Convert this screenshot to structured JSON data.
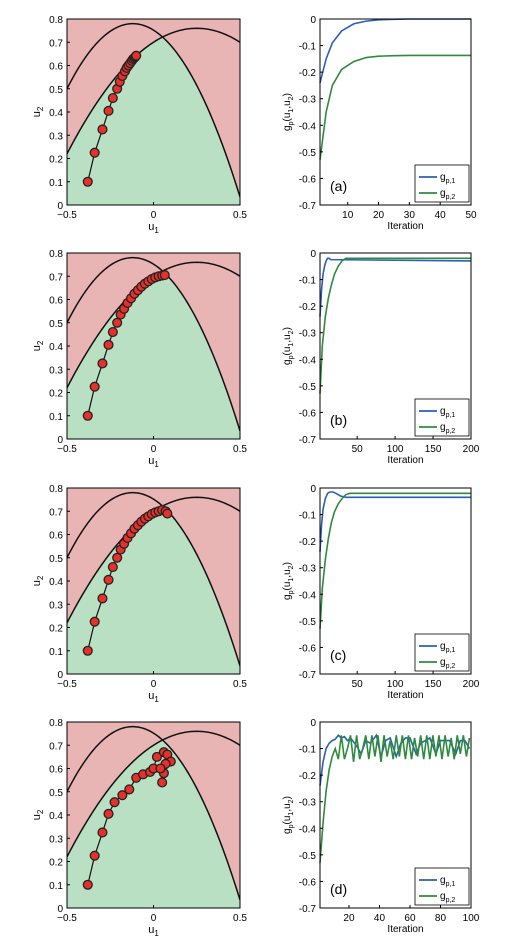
{
  "chart_data": [
    {
      "panel": "1-left",
      "type": "scatter",
      "xlabel": "u",
      "xlabel_sub": "1",
      "ylabel": "u",
      "ylabel_sub": "2",
      "xlim": [
        -0.5,
        0.5
      ],
      "ylim": [
        0,
        0.8
      ],
      "xticks": [
        "−0.5",
        "0",
        "0.5"
      ],
      "yticks": [
        "0",
        "0.1",
        "0.2",
        "0.3",
        "0.4",
        "0.5",
        "0.6",
        "0.7",
        "0.8"
      ],
      "region_colors": {
        "infeasible": "#e8b4b4",
        "feasible": "#b9e0c2"
      },
      "constraint_peaks": [
        [
          -0.12,
          0.78
        ],
        [
          0.25,
          0.76
        ]
      ],
      "points": [
        [
          -0.38,
          0.1
        ],
        [
          -0.34,
          0.225
        ],
        [
          -0.295,
          0.325
        ],
        [
          -0.26,
          0.405
        ],
        [
          -0.235,
          0.46
        ],
        [
          -0.21,
          0.5
        ],
        [
          -0.195,
          0.53
        ],
        [
          -0.18,
          0.555
        ],
        [
          -0.165,
          0.575
        ],
        [
          -0.155,
          0.59
        ],
        [
          -0.145,
          0.6
        ],
        [
          -0.135,
          0.61
        ],
        [
          -0.125,
          0.62
        ],
        [
          -0.118,
          0.628
        ],
        [
          -0.11,
          0.633
        ],
        [
          -0.105,
          0.638
        ],
        [
          -0.1,
          0.642
        ]
      ]
    },
    {
      "panel": "1-right",
      "type": "line",
      "tag": "(a)",
      "xlabel": "Iteration",
      "ylabel": "g",
      "ylabel_sub": "p",
      "ylabel_args": "(u",
      "ylabel_args2": ",u",
      "ylabel_close": ")",
      "xlim": [
        1,
        50
      ],
      "ylim": [
        -0.7,
        0
      ],
      "xticks": [
        "10",
        "20",
        "30",
        "40",
        "50"
      ],
      "yticks": [
        "0",
        "-0.1",
        "-0.2",
        "-0.3",
        "-0.4",
        "-0.5",
        "-0.6",
        "-0.7"
      ],
      "legend": [
        "g",
        "g"
      ],
      "legend_subs": [
        "p,1",
        "p,2"
      ],
      "series": [
        {
          "color": "#2a5fb8",
          "x": [
            1,
            3,
            5,
            8,
            12,
            16,
            20,
            25,
            30,
            40,
            50
          ],
          "y": [
            -0.24,
            -0.15,
            -0.09,
            -0.045,
            -0.018,
            -0.008,
            -0.003,
            -0.001,
            0,
            0,
            0
          ]
        },
        {
          "color": "#2e8b3e",
          "x": [
            1,
            3,
            5,
            8,
            12,
            16,
            20,
            25,
            30,
            40,
            50
          ],
          "y": [
            -0.53,
            -0.35,
            -0.25,
            -0.19,
            -0.16,
            -0.145,
            -0.14,
            -0.138,
            -0.137,
            -0.137,
            -0.137
          ]
        }
      ]
    },
    {
      "panel": "2-left",
      "type": "scatter",
      "xlabel": "u",
      "xlabel_sub": "1",
      "ylabel": "u",
      "ylabel_sub": "2",
      "xlim": [
        -0.5,
        0.5
      ],
      "ylim": [
        0,
        0.8
      ],
      "xticks": [
        "−0.5",
        "0",
        "0.5"
      ],
      "yticks": [
        "0",
        "0.1",
        "0.2",
        "0.3",
        "0.4",
        "0.5",
        "0.6",
        "0.7",
        "0.8"
      ],
      "region_colors": {
        "infeasible": "#e8b4b4",
        "feasible": "#b9e0c2"
      },
      "constraint_peaks": [
        [
          -0.12,
          0.78
        ],
        [
          0.25,
          0.76
        ]
      ],
      "points": [
        [
          -0.38,
          0.1
        ],
        [
          -0.34,
          0.225
        ],
        [
          -0.295,
          0.325
        ],
        [
          -0.26,
          0.405
        ],
        [
          -0.235,
          0.46
        ],
        [
          -0.21,
          0.5
        ],
        [
          -0.19,
          0.535
        ],
        [
          -0.17,
          0.56
        ],
        [
          -0.15,
          0.585
        ],
        [
          -0.13,
          0.605
        ],
        [
          -0.11,
          0.625
        ],
        [
          -0.09,
          0.64
        ],
        [
          -0.07,
          0.655
        ],
        [
          -0.05,
          0.668
        ],
        [
          -0.03,
          0.678
        ],
        [
          -0.01,
          0.688
        ],
        [
          0.01,
          0.695
        ],
        [
          0.03,
          0.7
        ],
        [
          0.05,
          0.703
        ],
        [
          0.065,
          0.705
        ]
      ]
    },
    {
      "panel": "2-right",
      "type": "line",
      "tag": "(b)",
      "xlabel": "Iteration",
      "ylabel": "g",
      "ylabel_sub": "p",
      "ylabel_args": "(u",
      "ylabel_args2": ",u",
      "ylabel_close": ")",
      "xlim": [
        1,
        200
      ],
      "ylim": [
        -0.7,
        0
      ],
      "xticks": [
        "50",
        "100",
        "150",
        "200"
      ],
      "yticks": [
        "0",
        "-0.1",
        "-0.2",
        "-0.3",
        "-0.4",
        "-0.5",
        "-0.6",
        "-0.7"
      ],
      "legend": [
        "g",
        "g"
      ],
      "legend_subs": [
        "p,1",
        "p,2"
      ],
      "series": [
        {
          "color": "#2a5fb8",
          "x": [
            1,
            3,
            5,
            7,
            9,
            11,
            13,
            15,
            200
          ],
          "y": [
            -0.24,
            -0.14,
            -0.08,
            -0.05,
            -0.03,
            -0.02,
            -0.02,
            -0.025,
            -0.03
          ]
        },
        {
          "color": "#2e8b3e",
          "x": [
            1,
            4,
            8,
            12,
            16,
            20,
            25,
            30,
            35,
            200
          ],
          "y": [
            -0.53,
            -0.35,
            -0.24,
            -0.17,
            -0.12,
            -0.08,
            -0.05,
            -0.03,
            -0.02,
            -0.02
          ]
        }
      ]
    },
    {
      "panel": "3-left",
      "type": "scatter",
      "xlabel": "u",
      "xlabel_sub": "1",
      "ylabel": "u",
      "ylabel_sub": "2",
      "xlim": [
        -0.5,
        0.5
      ],
      "ylim": [
        0,
        0.8
      ],
      "xticks": [
        "−0.5",
        "0",
        "0.5"
      ],
      "yticks": [
        "0",
        "0.1",
        "0.2",
        "0.3",
        "0.4",
        "0.5",
        "0.6",
        "0.7",
        "0.8"
      ],
      "region_colors": {
        "infeasible": "#e8b4b4",
        "feasible": "#b9e0c2"
      },
      "constraint_peaks": [
        [
          -0.12,
          0.78
        ],
        [
          0.25,
          0.76
        ]
      ],
      "points": [
        [
          -0.38,
          0.1
        ],
        [
          -0.34,
          0.225
        ],
        [
          -0.295,
          0.325
        ],
        [
          -0.26,
          0.405
        ],
        [
          -0.235,
          0.46
        ],
        [
          -0.21,
          0.5
        ],
        [
          -0.19,
          0.535
        ],
        [
          -0.17,
          0.56
        ],
        [
          -0.15,
          0.585
        ],
        [
          -0.13,
          0.605
        ],
        [
          -0.11,
          0.625
        ],
        [
          -0.09,
          0.64
        ],
        [
          -0.07,
          0.655
        ],
        [
          -0.05,
          0.668
        ],
        [
          -0.03,
          0.678
        ],
        [
          -0.01,
          0.688
        ],
        [
          0.01,
          0.695
        ],
        [
          0.03,
          0.7
        ],
        [
          0.05,
          0.705
        ],
        [
          0.07,
          0.7
        ],
        [
          0.08,
          0.69
        ]
      ]
    },
    {
      "panel": "3-right",
      "type": "line",
      "tag": "(c)",
      "xlabel": "Iteration",
      "ylabel": "g",
      "ylabel_sub": "p",
      "ylabel_args": "(u",
      "ylabel_args2": ",u",
      "ylabel_close": ")",
      "xlim": [
        1,
        200
      ],
      "ylim": [
        -0.7,
        0
      ],
      "xticks": [
        "50",
        "100",
        "150",
        "200"
      ],
      "yticks": [
        "0",
        "-0.1",
        "-0.2",
        "-0.3",
        "-0.4",
        "-0.5",
        "-0.6",
        "-0.7"
      ],
      "legend": [
        "g",
        "g"
      ],
      "legend_subs": [
        "p,1",
        "p,2"
      ],
      "series": [
        {
          "color": "#2a5fb8",
          "x": [
            1,
            3,
            5,
            8,
            11,
            14,
            18,
            22,
            28,
            35,
            200
          ],
          "y": [
            -0.24,
            -0.14,
            -0.08,
            -0.04,
            -0.02,
            -0.015,
            -0.015,
            -0.02,
            -0.03,
            -0.035,
            -0.035
          ]
        },
        {
          "color": "#2e8b3e",
          "x": [
            1,
            4,
            8,
            12,
            16,
            20,
            25,
            30,
            35,
            40,
            200
          ],
          "y": [
            -0.53,
            -0.38,
            -0.27,
            -0.19,
            -0.13,
            -0.09,
            -0.06,
            -0.04,
            -0.025,
            -0.02,
            -0.02
          ]
        }
      ]
    },
    {
      "panel": "4-left",
      "type": "scatter",
      "xlabel": "u",
      "xlabel_sub": "1",
      "ylabel": "u",
      "ylabel_sub": "2",
      "xlim": [
        -0.5,
        0.5
      ],
      "ylim": [
        0,
        0.8
      ],
      "xticks": [
        "−0.5",
        "0",
        "0.5"
      ],
      "yticks": [
        "0",
        "0.1",
        "0.2",
        "0.3",
        "0.4",
        "0.5",
        "0.6",
        "0.7",
        "0.8"
      ],
      "region_colors": {
        "infeasible": "#e8b4b4",
        "feasible": "#b9e0c2"
      },
      "constraint_peaks": [
        [
          -0.12,
          0.78
        ],
        [
          0.25,
          0.76
        ]
      ],
      "points": [
        [
          -0.38,
          0.1
        ],
        [
          -0.34,
          0.225
        ],
        [
          -0.295,
          0.325
        ],
        [
          -0.26,
          0.405
        ],
        [
          -0.225,
          0.455
        ],
        [
          -0.18,
          0.485
        ],
        [
          -0.14,
          0.51
        ],
        [
          -0.1,
          0.56
        ],
        [
          -0.06,
          0.575
        ],
        [
          -0.02,
          0.585
        ],
        [
          0.0,
          0.6
        ],
        [
          0.02,
          0.65
        ],
        [
          0.06,
          0.67
        ],
        [
          0.08,
          0.66
        ],
        [
          0.1,
          0.63
        ],
        [
          0.06,
          0.58
        ],
        [
          0.05,
          0.54
        ],
        [
          0.07,
          0.62
        ],
        [
          0.04,
          0.6
        ]
      ]
    },
    {
      "panel": "4-right",
      "type": "line",
      "tag": "(d)",
      "xlabel": "Iteration",
      "ylabel": "g",
      "ylabel_sub": "p",
      "ylabel_args": "(u",
      "ylabel_args2": ",u",
      "ylabel_close": ")",
      "xlim": [
        1,
        100
      ],
      "ylim": [
        -0.7,
        0
      ],
      "xticks": [
        "20",
        "40",
        "60",
        "80",
        "100"
      ],
      "yticks": [
        "0",
        "-0.1",
        "-0.2",
        "-0.3",
        "-0.4",
        "-0.5",
        "-0.6",
        "-0.7"
      ],
      "legend": [
        "g",
        "g"
      ],
      "legend_subs": [
        "p,1",
        "p,2"
      ],
      "series": [
        {
          "color": "#2a5fb8",
          "x": [
            1,
            3,
            5,
            7,
            9,
            11,
            13,
            15,
            17,
            19,
            21,
            25,
            28,
            31,
            34,
            38,
            41,
            44,
            47,
            51,
            54,
            57,
            60,
            64,
            67,
            70,
            73,
            77,
            80,
            83,
            86,
            90,
            93,
            96,
            99
          ],
          "y": [
            -0.24,
            -0.15,
            -0.1,
            -0.08,
            -0.07,
            -0.065,
            -0.05,
            -0.06,
            -0.055,
            -0.07,
            -0.06,
            -0.09,
            -0.12,
            -0.07,
            -0.08,
            -0.05,
            -0.13,
            -0.07,
            -0.06,
            -0.13,
            -0.08,
            -0.06,
            -0.06,
            -0.12,
            -0.08,
            -0.07,
            -0.06,
            -0.12,
            -0.07,
            -0.07,
            -0.07,
            -0.12,
            -0.07,
            -0.07,
            -0.1
          ]
        },
        {
          "color": "#2e8b3e",
          "x": [
            1,
            3,
            5,
            7,
            9,
            11,
            13,
            15,
            17,
            19,
            21,
            23,
            25,
            27,
            29,
            31,
            33,
            35,
            37,
            39,
            41,
            43,
            45,
            47,
            49,
            51,
            53,
            55,
            57,
            59,
            61,
            63,
            65,
            67,
            69,
            71,
            73,
            75,
            77,
            79,
            81,
            83,
            85,
            87,
            89,
            91,
            93,
            95,
            97,
            99
          ],
          "y": [
            -0.53,
            -0.38,
            -0.26,
            -0.18,
            -0.13,
            -0.1,
            -0.14,
            -0.05,
            -0.14,
            -0.1,
            -0.05,
            -0.15,
            -0.05,
            -0.14,
            -0.1,
            -0.05,
            -0.14,
            -0.05,
            -0.13,
            -0.05,
            -0.15,
            -0.05,
            -0.13,
            -0.07,
            -0.14,
            -0.05,
            -0.13,
            -0.05,
            -0.14,
            -0.05,
            -0.14,
            -0.06,
            -0.13,
            -0.05,
            -0.14,
            -0.05,
            -0.14,
            -0.05,
            -0.13,
            -0.05,
            -0.14,
            -0.05,
            -0.13,
            -0.06,
            -0.14,
            -0.05,
            -0.12,
            -0.05,
            -0.13,
            -0.06
          ]
        }
      ]
    }
  ]
}
